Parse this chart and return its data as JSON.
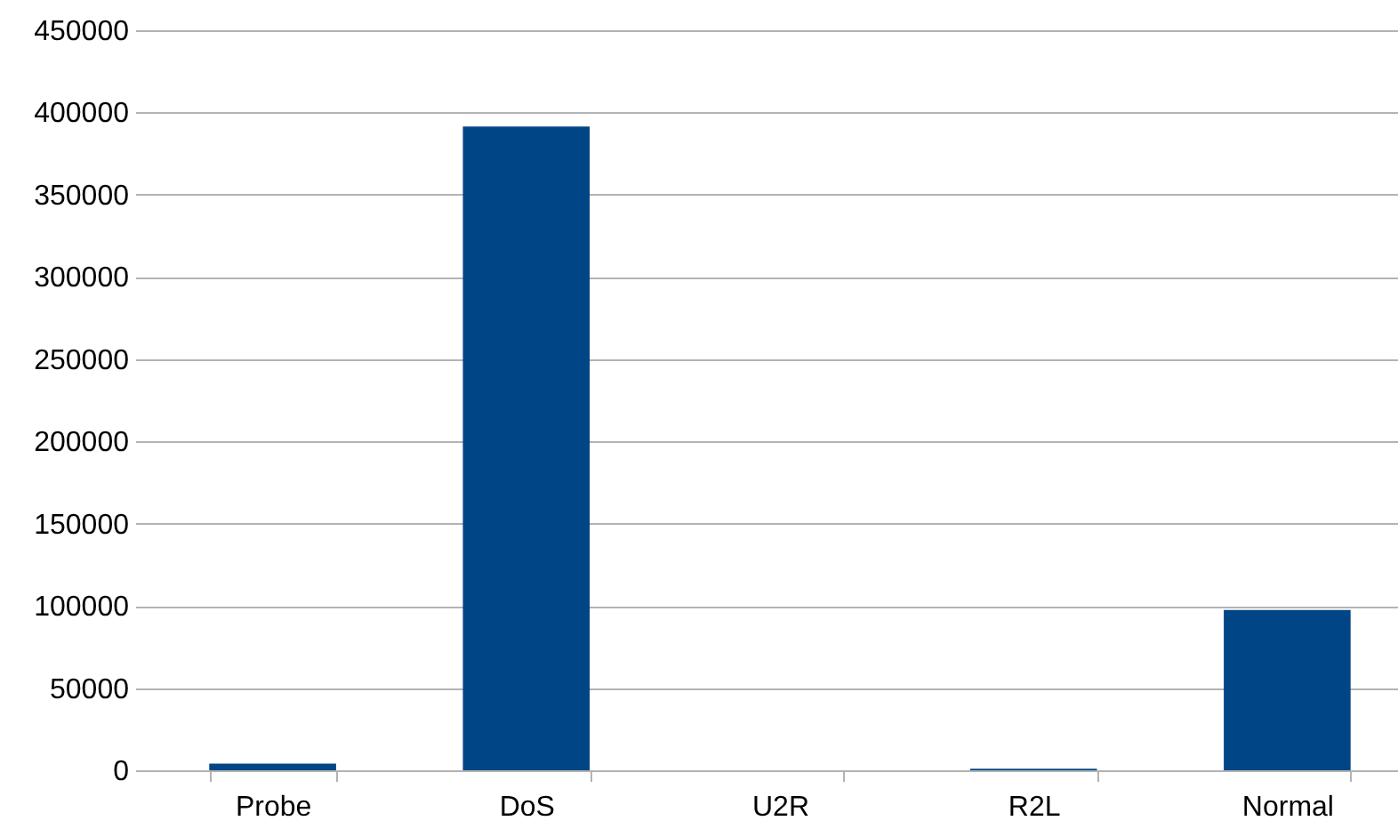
{
  "chart_data": {
    "type": "bar",
    "categories": [
      "Probe",
      "DoS",
      "U2R",
      "R2L",
      "Normal"
    ],
    "values": [
      4000,
      391500,
      50,
      1000,
      97500
    ],
    "color": "#004586",
    "ylim": [
      0,
      450000
    ],
    "yticks": [
      0,
      50000,
      100000,
      150000,
      200000,
      250000,
      300000,
      350000,
      400000,
      450000
    ],
    "grid": "y"
  }
}
